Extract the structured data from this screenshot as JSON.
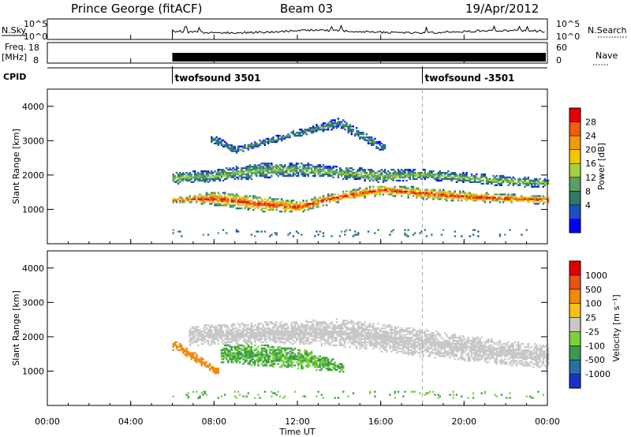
{
  "header": {
    "station": "Prince George (fitACF)",
    "beam": "Beam 03",
    "date": "19/Apr/2012"
  },
  "noise_panel": {
    "left_label": "N.Sky",
    "left_ticks": [
      "10^5",
      "10^0"
    ],
    "right_label": "N.Search",
    "right_ticks": [
      "10^5",
      "10^0"
    ]
  },
  "freq_panel": {
    "left_label_line1": "Freq.",
    "left_label_line2": "[MHz]",
    "left_ticks": [
      "18",
      "8"
    ],
    "right_label": "Nave",
    "right_ticks": [
      "60",
      "0"
    ]
  },
  "cpid": {
    "label": "CPID",
    "modes": [
      {
        "name": "twofsound 3501",
        "start_hour": 6.0
      },
      {
        "name": "twofsound -3501",
        "start_hour": 18.0
      }
    ]
  },
  "power_panel": {
    "ylabel": "Slant Range [km]",
    "colorbar_label": "Power [dB]",
    "colorbar_ticks": [
      "28",
      "24",
      "20",
      "16",
      "12",
      "8",
      "4"
    ],
    "colors": [
      "#0000ff",
      "#1e4fc0",
      "#2e7a66",
      "#5aa062",
      "#a8cf3c",
      "#f0c800",
      "#f59a10",
      "#ef5d0e",
      "#e60000"
    ]
  },
  "velocity_panel": {
    "ylabel": "Slant Range [km]",
    "colorbar_label": "Velocity [m s⁻¹]",
    "colorbar_ticks": [
      "1000",
      "500",
      "100",
      "25",
      "-25",
      "-100",
      "-500",
      "-1000"
    ],
    "colors": [
      "#1834c8",
      "#2b6ea6",
      "#3a9a4e",
      "#7cd23c",
      "#c8c8c8",
      "#f4c018",
      "#f08a10",
      "#e85212",
      "#e00000"
    ]
  },
  "x_axis": {
    "label": "Time UT",
    "ticks": [
      "00:00",
      "04:00",
      "08:00",
      "12:00",
      "16:00",
      "20:00",
      "00:00"
    ]
  },
  "chart_data": {
    "type": "heatmap",
    "title": "Prince George (fitACF) Beam 03 19/Apr/2012",
    "xlabel": "Time UT",
    "ylabel": "Slant Range [km]",
    "xlim_hours": [
      0,
      24
    ],
    "ylim_km": [
      0,
      4500
    ],
    "data_start_hour": 6.0,
    "mode_change_hour": 18.0,
    "power_db_range": [
      0,
      30
    ],
    "velocity_ms_range": [
      -1000,
      1000
    ],
    "power_bands": [
      {
        "name": "low band (high power)",
        "t": [
          6.2,
          8,
          10,
          12,
          14,
          16,
          18,
          20,
          22,
          24
        ],
        "range_km": [
          1250,
          1300,
          1150,
          1050,
          1350,
          1550,
          1450,
          1350,
          1300,
          1250
        ],
        "width_km": [
          150,
          400,
          450,
          350,
          300,
          300,
          350,
          300,
          250,
          250
        ],
        "peak_db": 28
      },
      {
        "name": "upper band",
        "t": [
          6.2,
          8,
          10,
          12,
          14,
          16,
          18,
          20,
          22,
          24
        ],
        "range_km": [
          1900,
          1950,
          2100,
          2150,
          2050,
          1950,
          2000,
          1900,
          1800,
          1750
        ],
        "width_km": [
          350,
          350,
          450,
          400,
          350,
          400,
          300,
          300,
          300,
          250
        ],
        "peak_db": 14
      },
      {
        "name": "far echoes",
        "t": [
          8,
          9,
          12,
          14,
          16
        ],
        "range_km": [
          3000,
          2700,
          3200,
          3500,
          2800
        ],
        "width_km": [
          250,
          200,
          200,
          300,
          250
        ],
        "peak_db": 10
      }
    ],
    "velocity_bands": [
      {
        "name": "positive velocity (green)",
        "t": [
          8.5,
          10,
          12,
          13,
          14
        ],
        "range_km": [
          1500,
          1450,
          1350,
          1250,
          1100
        ],
        "width_km": [
          550,
          650,
          600,
          500,
          300
        ],
        "velocity_ms": 100
      },
      {
        "name": "ground scatter (grey)",
        "t": [
          7,
          10,
          14,
          18,
          22,
          24
        ],
        "range_km": [
          2000,
          2100,
          2100,
          1800,
          1500,
          1400
        ],
        "width_km": [
          600,
          600,
          800,
          800,
          700,
          700
        ],
        "velocity_ms": 0
      },
      {
        "name": "negative velocity (orange)",
        "t": [
          6.2,
          7,
          8
        ],
        "range_km": [
          1700,
          1400,
          1000
        ],
        "width_km": [
          250,
          300,
          200
        ],
        "velocity_ms": -300
      }
    ]
  }
}
